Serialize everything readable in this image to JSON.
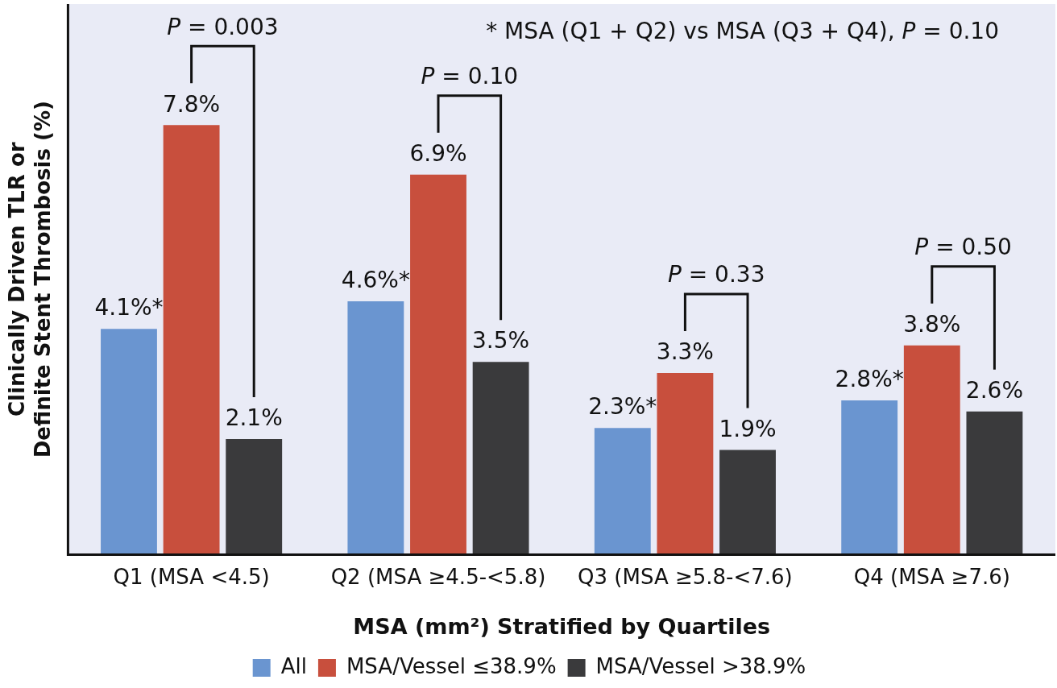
{
  "chart_data": {
    "type": "bar",
    "ylabel": "Clinically Driven TLR or Definite Stent Thrombosis (%)",
    "xlabel": "MSA (mm²) Stratified by Quartiles",
    "categories": [
      "Q1 (MSA <4.5)",
      "Q2 (MSA ≥4.5-<5.8)",
      "Q3 (MSA ≥5.8-<7.6)",
      "Q4 (MSA ≥7.6)"
    ],
    "series": [
      {
        "name": "All",
        "color": "#6a95d0",
        "values": [
          4.1,
          4.6,
          2.3,
          2.8
        ],
        "value_labels": [
          "4.1%*",
          "4.6%*",
          "2.3%*",
          "2.8%*"
        ]
      },
      {
        "name": "MSA/Vessel ≤38.9%",
        "color": "#c84f3d",
        "values": [
          7.8,
          6.9,
          3.3,
          3.8
        ],
        "value_labels": [
          "7.8%",
          "6.9%",
          "3.3%",
          "3.8%"
        ]
      },
      {
        "name": "MSA/Vessel >38.9%",
        "color": "#3a3a3c",
        "values": [
          2.1,
          3.5,
          1.9,
          2.6
        ],
        "value_labels": [
          "2.1%",
          "3.5%",
          "1.9%",
          "2.6%"
        ]
      }
    ],
    "ylim": [
      0,
      10
    ],
    "tick_labels": "x",
    "grid": false,
    "legend": "bottom",
    "annotations": [
      "P = 0.003",
      "P = 0.10",
      "P = 0.33",
      "P = 0.50",
      "* MSA (Q1 + Q2) vs MSA (Q3 + Q4), P = 0.10"
    ]
  }
}
